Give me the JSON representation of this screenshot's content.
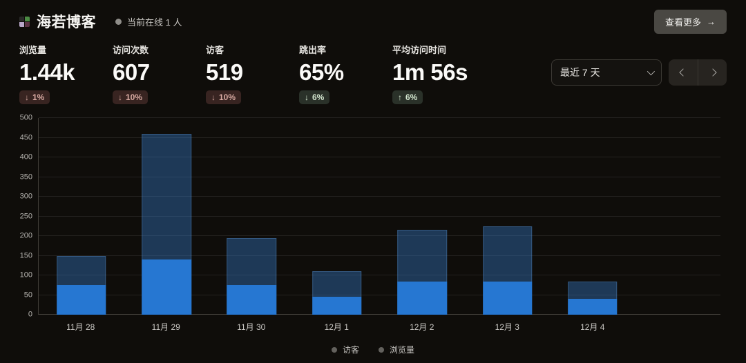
{
  "header": {
    "title": "海若博客",
    "online_status": "当前在线 1 人",
    "view_more": {
      "label": "查看更多",
      "arrow": "→"
    }
  },
  "stats": [
    {
      "label": "浏览量",
      "value": "1.44k",
      "arrow": "↓",
      "delta": "1%",
      "tone": "negative"
    },
    {
      "label": "访问次数",
      "value": "607",
      "arrow": "↓",
      "delta": "10%",
      "tone": "negative"
    },
    {
      "label": "访客",
      "value": "519",
      "arrow": "↓",
      "delta": "10%",
      "tone": "negative"
    },
    {
      "label": "跳出率",
      "value": "65%",
      "arrow": "↓",
      "delta": "6%",
      "tone": "positive"
    },
    {
      "label": "平均访问时间",
      "value": "1m 56s",
      "arrow": "↑",
      "delta": "6%",
      "tone": "positive"
    }
  ],
  "controls": {
    "range_select": {
      "value": "最近 7 天",
      "icon": "chevron-down-icon"
    },
    "pager": {
      "prev_icon": "chevron-left-icon",
      "next_icon": "chevron-right-icon"
    }
  },
  "chart_data": {
    "type": "bar",
    "categories": [
      "11月 28",
      "11月 29",
      "11月 30",
      "12月 1",
      "12月 2",
      "12月 3",
      "12月 4"
    ],
    "series": [
      {
        "name": "访客",
        "values": [
          75,
          140,
          75,
          45,
          85,
          85,
          40
        ],
        "color": "#2677d2"
      },
      {
        "name": "浏览量",
        "values": [
          150,
          460,
          195,
          110,
          215,
          225,
          85
        ],
        "color": "rgba(56,128,214,0.38)"
      }
    ],
    "title": "",
    "xlabel": "",
    "ylabel": "",
    "ylim": [
      0,
      500
    ],
    "ytick_step": 50,
    "grid": true,
    "legend_position": "bottom",
    "x_slots": 8
  },
  "colors": {
    "background": "#0f0d0a",
    "visitors_bar": "#2677d2",
    "pageviews_bar": "rgba(56,128,214,0.38)",
    "badge_negative_bg": "#382421",
    "badge_negative_text": "#d8aaa2",
    "badge_positive_bg": "#2a3129",
    "badge_positive_text": "#d3e6cf",
    "logo_pixels": [
      "#2a2a28",
      "#4c8b44",
      "#b9a7c9",
      "#5a3243"
    ]
  }
}
